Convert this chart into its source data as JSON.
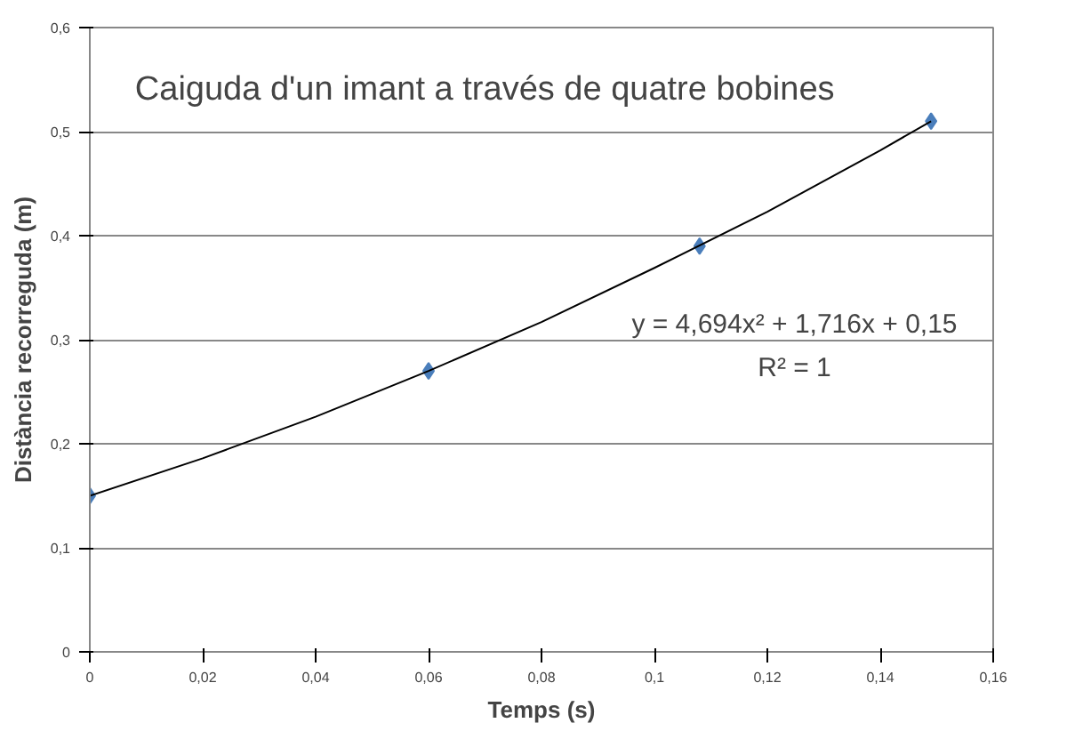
{
  "chart_data": {
    "type": "scatter",
    "title": "Caiguda d'un imant a través de quatre bobines",
    "xlabel": "Temps (s)",
    "ylabel": "Distància recorreguda (m)",
    "x": [
      0,
      0.06,
      0.108,
      0.149
    ],
    "series": [
      {
        "color": "#4a7ebb",
        "values": [
          0.15,
          0.27,
          0.39,
          0.51
        ],
        "marker": "diamond"
      },
      {
        "type": "line",
        "color": "#000000",
        "x": [
          0,
          0.02,
          0.04,
          0.06,
          0.08,
          0.1,
          0.12,
          0.14,
          0.149
        ],
        "values": [
          0.15,
          0.186,
          0.226,
          0.27,
          0.317,
          0.369,
          0.423,
          0.482,
          0.51
        ],
        "marker": "none",
        "line_style": "solid"
      }
    ],
    "annotations": [
      "y = 4,694x² + 1,716x + 0,15",
      "R² = 1"
    ],
    "xlim": [
      0,
      0.16
    ],
    "ylim": [
      0,
      0.6
    ],
    "xticks": [
      0,
      {
        "value": 0.02,
        "label": "0,02"
      },
      {
        "value": 0.04,
        "label": "0,04"
      },
      {
        "value": 0.06,
        "label": "0,06"
      },
      {
        "value": 0.08,
        "label": "0,08"
      },
      {
        "value": 0.1,
        "label": "0,1"
      },
      {
        "value": 0.12,
        "label": "0,12"
      },
      {
        "value": 0.14,
        "label": "0,14"
      },
      {
        "value": 0.16,
        "label": "0,16"
      }
    ],
    "yticks": [
      0,
      {
        "value": 0.1,
        "label": "0,1"
      },
      {
        "value": 0.2,
        "label": "0,2"
      },
      {
        "value": 0.3,
        "label": "0,3"
      },
      {
        "value": 0.4,
        "label": "0,4"
      },
      {
        "value": 0.5,
        "label": "0,5"
      },
      {
        "value": 0.6,
        "label": "0,6"
      }
    ],
    "grid": "y"
  }
}
